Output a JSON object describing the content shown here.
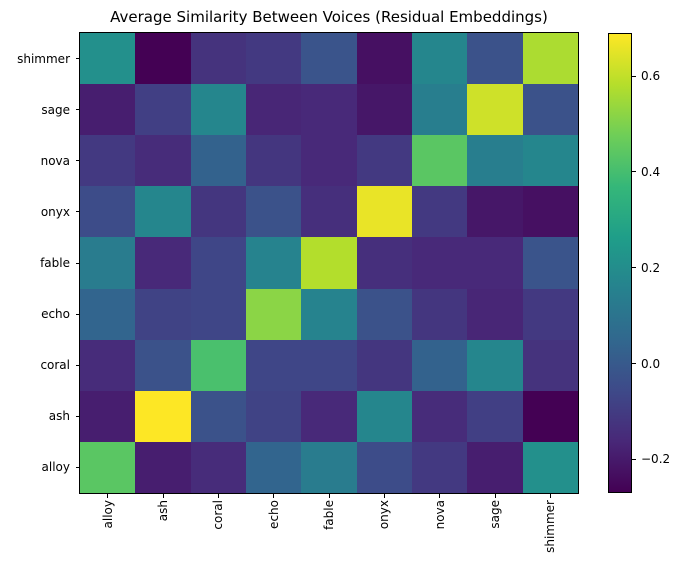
{
  "chart_data": {
    "type": "heatmap",
    "title": "Average Similarity Between Voices (Residual Embeddings)",
    "x_categories": [
      "alloy",
      "ash",
      "coral",
      "echo",
      "fable",
      "onyx",
      "nova",
      "sage",
      "shimmer"
    ],
    "y_categories_top_to_bottom": [
      "shimmer",
      "sage",
      "nova",
      "onyx",
      "fable",
      "echo",
      "coral",
      "ash",
      "alloy"
    ],
    "values_rows_top_to_bottom": [
      [
        0.21,
        -0.27,
        -0.13,
        -0.11,
        -0.02,
        -0.23,
        0.17,
        -0.03,
        0.57
      ],
      [
        -0.19,
        -0.09,
        0.17,
        -0.17,
        -0.16,
        -0.21,
        0.14,
        0.62,
        -0.03
      ],
      [
        -0.11,
        -0.15,
        0.03,
        -0.12,
        -0.16,
        -0.11,
        0.44,
        0.14,
        0.17
      ],
      [
        -0.05,
        0.17,
        -0.12,
        -0.03,
        -0.14,
        0.66,
        -0.11,
        -0.21,
        -0.23
      ],
      [
        0.13,
        -0.16,
        -0.07,
        0.16,
        0.58,
        -0.14,
        -0.16,
        -0.16,
        -0.02
      ],
      [
        0.04,
        -0.08,
        -0.07,
        0.52,
        0.16,
        -0.03,
        -0.12,
        -0.17,
        -0.11
      ],
      [
        -0.15,
        -0.03,
        0.41,
        -0.07,
        -0.07,
        -0.12,
        0.03,
        0.17,
        -0.13
      ],
      [
        -0.19,
        0.69,
        -0.03,
        -0.08,
        -0.16,
        0.17,
        -0.15,
        -0.09,
        -0.27
      ],
      [
        0.44,
        -0.19,
        -0.15,
        0.04,
        0.13,
        -0.05,
        -0.11,
        -0.19,
        0.21
      ]
    ],
    "vmin": -0.27,
    "vmax": 0.69,
    "colormap": "viridis",
    "colormap_stops": [
      "#440154",
      "#482878",
      "#3e4a89",
      "#31688e",
      "#26828e",
      "#1f9e89",
      "#35b779",
      "#6ece58",
      "#b5de2b",
      "#fde725"
    ],
    "colorbar": {
      "position": "right",
      "tick_values": [
        0.6,
        0.4,
        0.2,
        0.0,
        -0.2
      ],
      "tick_labels": [
        "0.6",
        "0.4",
        "0.2",
        "0.0",
        "−0.2"
      ]
    },
    "grid": false,
    "legend": "none"
  },
  "colors": {
    "background": "#ffffff",
    "spine": "#000000",
    "text": "#000000"
  }
}
